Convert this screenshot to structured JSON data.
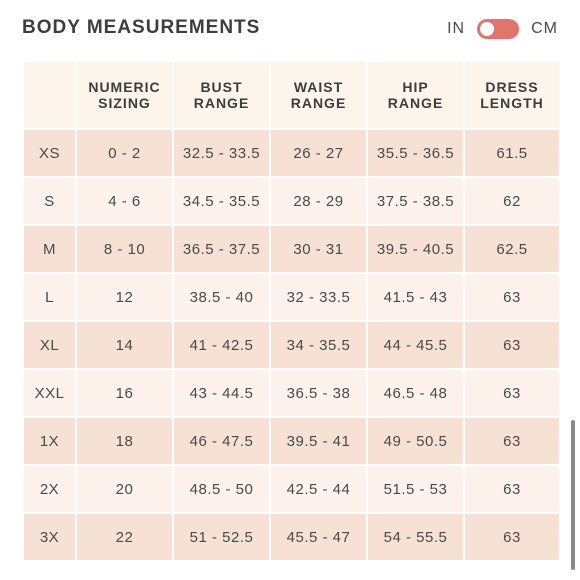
{
  "header": {
    "title": "BODY MEASUREMENTS",
    "unit_in": "IN",
    "unit_cm": "CM",
    "toggle_color": "#e0756c"
  },
  "table": {
    "columns": [
      "",
      "NUMERIC\nSIZING",
      "BUST\nRANGE",
      "WAIST\nRANGE",
      "HIP\nRANGE",
      "DRESS\nLENGTH"
    ],
    "rows": [
      [
        "XS",
        "0 - 2",
        "32.5 - 33.5",
        "26 - 27",
        "35.5 - 36.5",
        "61.5"
      ],
      [
        "S",
        "4 - 6",
        "34.5 - 35.5",
        "28 - 29",
        "37.5 - 38.5",
        "62"
      ],
      [
        "M",
        "8 - 10",
        "36.5 - 37.5",
        "30 - 31",
        "39.5 - 40.5",
        "62.5"
      ],
      [
        "L",
        "12",
        "38.5 - 40",
        "32 - 33.5",
        "41.5 - 43",
        "63"
      ],
      [
        "XL",
        "14",
        "41 - 42.5",
        "34 - 35.5",
        "44 - 45.5",
        "63"
      ],
      [
        "XXL",
        "16",
        "43 - 44.5",
        "36.5 - 38",
        "46.5 - 48",
        "63"
      ],
      [
        "1X",
        "18",
        "46 - 47.5",
        "39.5 - 41",
        "49 - 50.5",
        "63"
      ],
      [
        "2X",
        "20",
        "48.5 - 50",
        "42.5 - 44",
        "51.5 - 53",
        "63"
      ],
      [
        "3X",
        "22",
        "51 - 52.5",
        "45.5 - 47",
        "54 - 55.5",
        "63"
      ]
    ]
  }
}
